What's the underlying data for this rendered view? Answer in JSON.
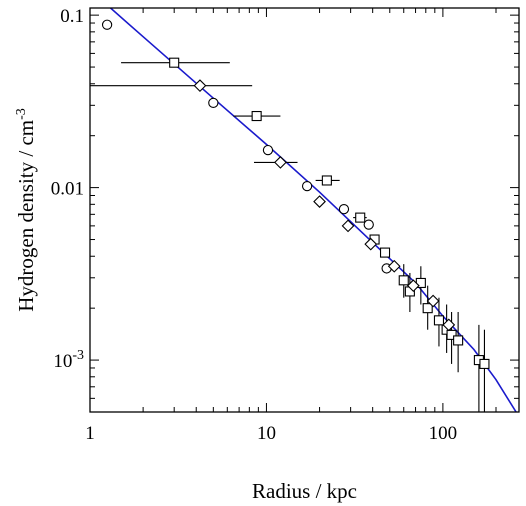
{
  "chart_data": {
    "type": "scatter",
    "title": "",
    "xlabel": "Radius / kpc",
    "ylabel_main": "Hydrogen density / cm",
    "ylabel_sup": "-3",
    "xscale": "log",
    "yscale": "log",
    "xlim": [
      1,
      270
    ],
    "ylim": [
      0.0005,
      0.11
    ],
    "grid": false,
    "legend": "none",
    "x_ticks": [
      {
        "value": 1,
        "label": "1"
      },
      {
        "value": 10,
        "label": "10"
      },
      {
        "value": 100,
        "label": "100"
      }
    ],
    "y_ticks": [
      {
        "value": 0.1,
        "label": "0.1"
      },
      {
        "value": 0.01,
        "label": "0.01"
      },
      {
        "value": 0.001,
        "label_base": "10",
        "label_sup": "-3"
      }
    ],
    "series": [
      {
        "marker": "circle",
        "points": [
          {
            "x": 1.25,
            "y": 0.088
          },
          {
            "x": 5.0,
            "y": 0.031
          },
          {
            "x": 10.2,
            "y": 0.0165
          },
          {
            "x": 17.0,
            "y": 0.0102
          },
          {
            "x": 27.5,
            "y": 0.0075
          },
          {
            "x": 38.0,
            "y": 0.0061
          },
          {
            "x": 48.0,
            "y": 0.0034
          }
        ]
      },
      {
        "marker": "square",
        "points": [
          {
            "x": 3.0,
            "y": 0.053,
            "xerr": [
              1.5,
              6.2
            ]
          },
          {
            "x": 8.8,
            "y": 0.026,
            "xerr": [
              6.5,
              12.0
            ]
          },
          {
            "x": 22.0,
            "y": 0.011,
            "xerr": [
              19.0,
              26.0
            ]
          },
          {
            "x": 34.0,
            "y": 0.0067,
            "xerr": [
              31.0,
              37.0
            ]
          },
          {
            "x": 41.0,
            "y": 0.005
          },
          {
            "x": 47.0,
            "y": 0.0042
          },
          {
            "x": 60.0,
            "y": 0.0029
          },
          {
            "x": 65.0,
            "y": 0.0025
          },
          {
            "x": 75.0,
            "y": 0.0028
          },
          {
            "x": 82.0,
            "y": 0.002
          },
          {
            "x": 95.0,
            "y": 0.0017
          },
          {
            "x": 105.0,
            "y": 0.0015
          },
          {
            "x": 112.0,
            "y": 0.0014
          },
          {
            "x": 122.0,
            "y": 0.0013
          },
          {
            "x": 160.0,
            "y": 0.001
          },
          {
            "x": 172.0,
            "y": 0.00095
          }
        ]
      },
      {
        "marker": "diamond",
        "points": [
          {
            "x": 4.2,
            "y": 0.039,
            "xerr": [
              1.0,
              8.3
            ]
          },
          {
            "x": 12.0,
            "y": 0.014,
            "xerr": [
              8.5,
              15.0
            ]
          },
          {
            "x": 20.0,
            "y": 0.0083
          },
          {
            "x": 29.0,
            "y": 0.006
          },
          {
            "x": 39.0,
            "y": 0.0047
          },
          {
            "x": 53.0,
            "y": 0.0035
          },
          {
            "x": 68.0,
            "y": 0.0027
          },
          {
            "x": 88.0,
            "y": 0.0022
          },
          {
            "x": 108.0,
            "y": 0.0016
          }
        ]
      }
    ],
    "yerr_bars": [
      {
        "x": 60,
        "y": [
          0.0023,
          0.0036
        ]
      },
      {
        "x": 65,
        "y": [
          0.0019,
          0.0032
        ]
      },
      {
        "x": 75,
        "y": [
          0.0021,
          0.0035
        ]
      },
      {
        "x": 82,
        "y": [
          0.0015,
          0.0027
        ]
      },
      {
        "x": 95,
        "y": [
          0.0012,
          0.0023
        ]
      },
      {
        "x": 105,
        "y": [
          0.0011,
          0.0021
        ]
      },
      {
        "x": 112,
        "y": [
          0.00095,
          0.0019
        ]
      },
      {
        "x": 122,
        "y": [
          0.00085,
          0.0019
        ]
      },
      {
        "x": 160,
        "y": [
          0.0005,
          0.0016
        ]
      },
      {
        "x": 172,
        "y": [
          0.0005,
          0.0015
        ]
      }
    ],
    "fit_line": {
      "color": "#1a1acc",
      "points": [
        {
          "x": 1.0,
          "y": 0.14
        },
        {
          "x": 2.0,
          "y": 0.075
        },
        {
          "x": 5.0,
          "y": 0.033
        },
        {
          "x": 10.0,
          "y": 0.0178
        },
        {
          "x": 20.0,
          "y": 0.0094
        },
        {
          "x": 40.0,
          "y": 0.0048
        },
        {
          "x": 70.0,
          "y": 0.0028
        },
        {
          "x": 100.0,
          "y": 0.0018
        },
        {
          "x": 150.0,
          "y": 0.00115
        },
        {
          "x": 200.0,
          "y": 0.00077
        },
        {
          "x": 260.0,
          "y": 0.0005
        }
      ]
    },
    "colors": {
      "markers": "#000000",
      "fit_line": "#1a1acc",
      "axes": "#000000"
    }
  }
}
